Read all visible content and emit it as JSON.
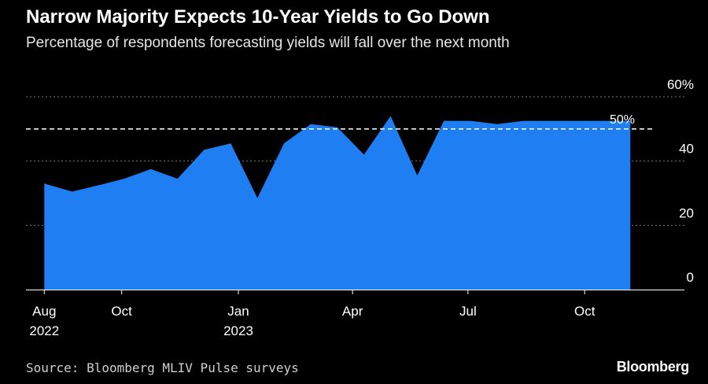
{
  "title": "Narrow Majority Expects 10-Year Yields to Go Down",
  "subtitle": "Percentage of respondents forecasting yields will fall over the next month",
  "source": "Source: Bloomberg MLIV Pulse surveys",
  "logo": "Bloomberg",
  "colors": {
    "area": "#1f7ef2",
    "background": "#000000",
    "gridline": "#7a7a7a",
    "reference_line": "#ffffff",
    "text": "#ffffff"
  },
  "chart_data": {
    "type": "area",
    "title": "Narrow Majority Expects 10-Year Yields to Go Down",
    "subtitle": "Percentage of respondents forecasting yields will fall over the next month",
    "x": [
      "2022-08-01",
      "2022-08-23",
      "2022-09-13",
      "2022-10-03",
      "2022-10-24",
      "2022-11-14",
      "2022-12-05",
      "2022-12-26",
      "2023-01-16",
      "2023-02-06",
      "2023-02-27",
      "2023-03-20",
      "2023-04-10",
      "2023-05-01",
      "2023-05-22",
      "2023-06-12",
      "2023-07-03",
      "2023-07-24",
      "2023-08-14",
      "2023-09-04",
      "2023-09-25",
      "2023-10-16",
      "2023-11-06"
    ],
    "series": [
      {
        "values": [
          33,
          30.5,
          32.5,
          34.5,
          37.5,
          34.5,
          43.5,
          45.5,
          28.5,
          45.5,
          51.5,
          50.5,
          42,
          54,
          35.5,
          52.5,
          52.5,
          51.5,
          52.5,
          52.5,
          52.5,
          52.5,
          52.5
        ]
      }
    ],
    "reference_line": {
      "value": 50,
      "label": "50%"
    },
    "y_ticks": [
      {
        "value": 0,
        "label": "0"
      },
      {
        "value": 20,
        "label": "20"
      },
      {
        "value": 40,
        "label": "40"
      },
      {
        "value": 60,
        "label": "60%"
      }
    ],
    "x_ticks": [
      {
        "date": "2022-08-01",
        "label": "Aug",
        "sublabel": "2022"
      },
      {
        "date": "2022-10-01",
        "label": "Oct",
        "sublabel": ""
      },
      {
        "date": "2023-01-01",
        "label": "Jan",
        "sublabel": "2023"
      },
      {
        "date": "2023-04-01",
        "label": "Apr",
        "sublabel": ""
      },
      {
        "date": "2023-07-01",
        "label": "Jul",
        "sublabel": ""
      },
      {
        "date": "2023-10-01",
        "label": "Oct",
        "sublabel": ""
      }
    ],
    "xlim": [
      "2022-07-25",
      "2023-11-30"
    ],
    "ylim": [
      0,
      60
    ],
    "grid": true,
    "y_axis_position": "right"
  }
}
